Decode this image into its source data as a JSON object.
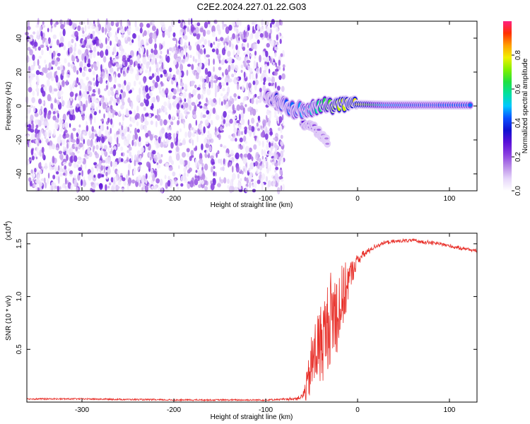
{
  "figure_title": "C2E2.2024.227.01.22.G03",
  "colors": {
    "snr_line": "#e8302a",
    "frame": "#000000"
  },
  "colormap": [
    "#ffffff",
    "#e6d6fa",
    "#b98be8",
    "#8a3fe0",
    "#5a10d8",
    "#1010d0",
    "#0a50ff",
    "#00c8ff",
    "#00e0a0",
    "#20e040",
    "#80f000",
    "#f0f000",
    "#ffa000",
    "#ff3000",
    "#ff2080"
  ],
  "chart_data": [
    {
      "type": "heatmap",
      "xlabel": "Height of straight line (km)",
      "ylabel": "Frequency (Hz)",
      "xlim": [
        -360,
        130
      ],
      "ylim": [
        -50,
        50
      ],
      "xticks": [
        -300,
        -200,
        -100,
        0,
        100
      ],
      "xtick_labels": [
        "-300",
        "-200",
        "-100",
        "0",
        "100"
      ],
      "yticks": [
        -40,
        -20,
        0,
        20,
        40
      ],
      "ytick_labels": [
        "-40",
        "-20",
        "0",
        "20",
        "40"
      ],
      "colorbar": {
        "label": "Normalized spectral amplitude",
        "range": [
          0.0,
          1.0
        ],
        "ticks": [
          0.0,
          0.2,
          0.4,
          0.6,
          0.8
        ],
        "tick_labels": [
          "0.0",
          "0.2",
          "0.4",
          "0.6",
          "0.8"
        ]
      },
      "regions": [
        {
          "description_x_range": [
            -360,
            -80
          ],
          "freq_range": [
            -50,
            50
          ],
          "amplitude_range": [
            0.0,
            0.25
          ]
        },
        {
          "description_x_range": [
            -80,
            130
          ],
          "freq_range": [
            -50,
            50
          ],
          "amplitude_range": [
            0.0,
            0.0
          ]
        }
      ],
      "signal_track": [
        {
          "x": -100,
          "freq": 6,
          "amplitude": 0.25
        },
        {
          "x": -85,
          "freq": 2,
          "amplitude": 0.4
        },
        {
          "x": -70,
          "freq": -2,
          "amplitude": 0.45
        },
        {
          "x": -55,
          "freq": -3,
          "amplitude": 0.5
        },
        {
          "x": -40,
          "freq": 0,
          "amplitude": 0.6
        },
        {
          "x": -20,
          "freq": 1,
          "amplitude": 0.75
        },
        {
          "x": 0,
          "freq": 1,
          "amplitude": 0.8
        },
        {
          "x": 30,
          "freq": 0.5,
          "amplitude": 0.5
        },
        {
          "x": 60,
          "freq": 0.5,
          "amplitude": 0.45
        },
        {
          "x": 90,
          "freq": 0.5,
          "amplitude": 0.45
        },
        {
          "x": 125,
          "freq": 0.5,
          "amplitude": 0.45
        }
      ],
      "secondary_track": [
        {
          "x": -60,
          "freq": -10,
          "amplitude": 0.3
        },
        {
          "x": -45,
          "freq": -14,
          "amplitude": 0.2
        },
        {
          "x": -32,
          "freq": -22,
          "amplitude": 0.15
        }
      ]
    },
    {
      "type": "line",
      "xlabel": "Height of straight line (km)",
      "ylabel": "SNR (10 * v/v)",
      "y_multiplier_label": "(x10",
      "y_multiplier_exp": "4",
      "y_multiplier_close": ")",
      "xlim": [
        -360,
        130
      ],
      "ylim": [
        0,
        1.6
      ],
      "xticks": [
        -300,
        -200,
        -100,
        0,
        100
      ],
      "xtick_labels": [
        "-300",
        "-200",
        "-100",
        "0",
        "100"
      ],
      "yticks": [
        0.5,
        1.0,
        1.5
      ],
      "ytick_labels": [
        "0.5",
        "1.0",
        "1.5"
      ],
      "series": [
        {
          "x": [
            -360,
            -300,
            -200,
            -100,
            -70,
            -60,
            -55,
            -50,
            -45,
            -40,
            -35,
            -30,
            -25,
            -20,
            -15,
            -10,
            -5,
            0,
            10,
            20,
            30,
            40,
            50,
            60,
            70,
            80,
            90,
            100,
            110,
            120,
            130
          ],
          "y": [
            0.03,
            0.03,
            0.02,
            0.02,
            0.03,
            0.05,
            0.15,
            0.35,
            0.5,
            0.55,
            0.65,
            0.8,
            0.85,
            0.9,
            1.0,
            1.15,
            1.25,
            1.35,
            1.42,
            1.48,
            1.51,
            1.52,
            1.53,
            1.53,
            1.52,
            1.51,
            1.5,
            1.48,
            1.46,
            1.45,
            1.43
          ],
          "noise_envelope": [
            0,
            0,
            0,
            0,
            0.01,
            0.03,
            0.15,
            0.3,
            0.35,
            0.4,
            0.4,
            0.45,
            0.45,
            0.4,
            0.3,
            0.2,
            0.1,
            0.05,
            0.03,
            0.02,
            0.015,
            0.015,
            0.015,
            0.015,
            0.015,
            0.015,
            0.015,
            0.015,
            0.015,
            0.015,
            0.015
          ]
        }
      ]
    }
  ]
}
